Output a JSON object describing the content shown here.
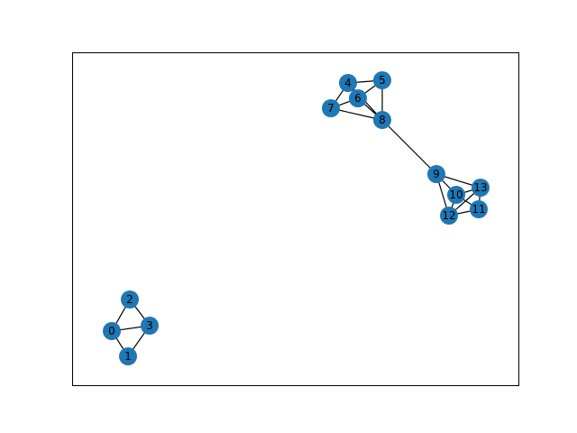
{
  "graph": {
    "node_color": "#1f77b4",
    "edge_color": "#000000",
    "nodes": [
      {
        "id": "0",
        "label": "0"
      },
      {
        "id": "1",
        "label": "1"
      },
      {
        "id": "2",
        "label": "2"
      },
      {
        "id": "3",
        "label": "3"
      },
      {
        "id": "4",
        "label": "4"
      },
      {
        "id": "5",
        "label": "5"
      },
      {
        "id": "6",
        "label": "6"
      },
      {
        "id": "7",
        "label": "7"
      },
      {
        "id": "8",
        "label": "8"
      },
      {
        "id": "9",
        "label": "9"
      },
      {
        "id": "10",
        "label": "10"
      },
      {
        "id": "11",
        "label": "11"
      },
      {
        "id": "12",
        "label": "12"
      },
      {
        "id": "13",
        "label": "13"
      }
    ],
    "edges": [
      [
        "0",
        "1"
      ],
      [
        "0",
        "2"
      ],
      [
        "0",
        "3"
      ],
      [
        "1",
        "3"
      ],
      [
        "2",
        "3"
      ],
      [
        "4",
        "5"
      ],
      [
        "4",
        "6"
      ],
      [
        "4",
        "7"
      ],
      [
        "5",
        "8"
      ],
      [
        "6",
        "5"
      ],
      [
        "6",
        "7"
      ],
      [
        "6",
        "8"
      ],
      [
        "7",
        "8"
      ],
      [
        "4",
        "8"
      ],
      [
        "8",
        "9"
      ],
      [
        "9",
        "10"
      ],
      [
        "9",
        "12"
      ],
      [
        "9",
        "13"
      ],
      [
        "10",
        "11"
      ],
      [
        "10",
        "12"
      ],
      [
        "10",
        "13"
      ],
      [
        "11",
        "13"
      ],
      [
        "11",
        "12"
      ],
      [
        "12",
        "13"
      ]
    ]
  }
}
